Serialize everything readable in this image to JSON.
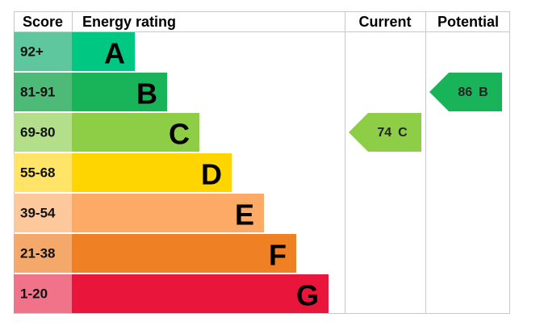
{
  "header": {
    "score": "Score",
    "rating": "Energy rating",
    "current": "Current",
    "potential": "Potential"
  },
  "bands": [
    {
      "score": "92+",
      "letter": "A",
      "color": "#00c781",
      "score_color": "#5ec79d"
    },
    {
      "score": "81-91",
      "letter": "B",
      "color": "#19b459",
      "score_color": "#4dba78"
    },
    {
      "score": "69-80",
      "letter": "C",
      "color": "#8dce46",
      "score_color": "#b3df8b"
    },
    {
      "score": "55-68",
      "letter": "D",
      "color": "#ffd500",
      "score_color": "#ffe468"
    },
    {
      "score": "39-54",
      "letter": "E",
      "color": "#fcaa65",
      "score_color": "#fdc89c"
    },
    {
      "score": "21-38",
      "letter": "F",
      "color": "#ef8023",
      "score_color": "#f4a96b"
    },
    {
      "score": "1-20",
      "letter": "G",
      "color": "#e9153b",
      "score_color": "#f0738a"
    }
  ],
  "current": {
    "score": 74,
    "letter": "C",
    "color": "#8dce46"
  },
  "potential": {
    "score": 86,
    "letter": "B",
    "color": "#19b459"
  }
}
